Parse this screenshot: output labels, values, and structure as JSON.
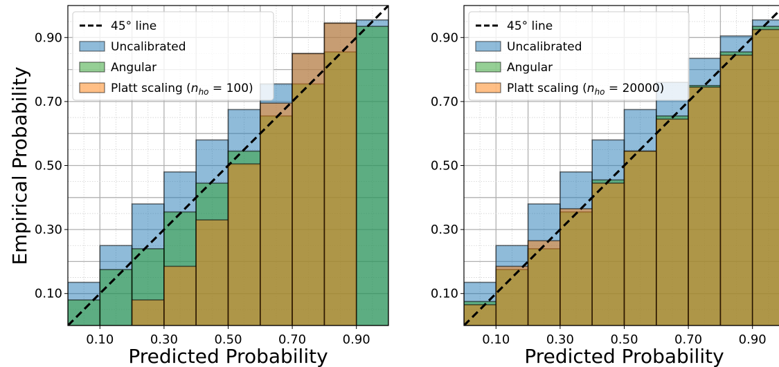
{
  "figure": {
    "ylabel": "Empirical Probability",
    "xlabel": "Predicted Probability"
  },
  "colors": {
    "uncalibrated": "#1f77b4",
    "angular": "#2ca02c",
    "platt": "#ff7f0e",
    "diagonal": "#000000"
  },
  "chart_data": [
    {
      "type": "bar",
      "xlabel": "Predicted Probability",
      "ylabel": "Empirical Probability",
      "xlim": [
        0,
        1
      ],
      "ylim": [
        0,
        1
      ],
      "grid": true,
      "legend_position": "top-left",
      "xticks": [
        "0.10",
        "0.30",
        "0.50",
        "0.70",
        "0.90"
      ],
      "yticks": [
        "0.10",
        "0.30",
        "0.50",
        "0.70",
        "0.90"
      ],
      "bin_edges": [
        0,
        0.1,
        0.2,
        0.3,
        0.4,
        0.5,
        0.6,
        0.7,
        0.8,
        0.9,
        1.0
      ],
      "legend": {
        "line": "45° line",
        "uncalibrated": "Uncalibrated",
        "angular": "Angular",
        "platt_prefix": "Platt scaling (",
        "platt_n": "n",
        "platt_sub": "ho",
        "platt_eq": " = 100)"
      },
      "series": [
        {
          "name": "Uncalibrated",
          "key": "uncalibrated",
          "values": [
            0.135,
            0.25,
            0.38,
            0.48,
            0.58,
            0.675,
            0.755,
            0.85,
            0.945,
            0.955
          ]
        },
        {
          "name": "Angular",
          "key": "angular",
          "values": [
            0.08,
            0.175,
            0.24,
            0.355,
            0.445,
            0.545,
            0.655,
            0.755,
            0.855,
            0.935
          ]
        },
        {
          "name": "Platt scaling",
          "key": "platt",
          "values": [
            0.0,
            0.0,
            0.08,
            0.185,
            0.33,
            0.505,
            0.695,
            0.85,
            0.945,
            0.0
          ]
        }
      ]
    },
    {
      "type": "bar",
      "xlabel": "Predicted Probability",
      "ylabel": "",
      "xlim": [
        0,
        1
      ],
      "ylim": [
        0,
        1
      ],
      "grid": true,
      "legend_position": "top-left",
      "xticks": [
        "0.10",
        "0.30",
        "0.50",
        "0.70",
        "0.90"
      ],
      "yticks": [
        "0.10",
        "0.30",
        "0.50",
        "0.70",
        "0.90"
      ],
      "bin_edges": [
        0,
        0.1,
        0.2,
        0.3,
        0.4,
        0.5,
        0.6,
        0.7,
        0.8,
        0.9,
        1.0
      ],
      "legend": {
        "line": "45° line",
        "uncalibrated": "Uncalibrated",
        "angular": "Angular",
        "platt_prefix": "Platt scaling (",
        "platt_n": "n",
        "platt_sub": "ho",
        "platt_eq": " = 20000)"
      },
      "series": [
        {
          "name": "Uncalibrated",
          "key": "uncalibrated",
          "values": [
            0.135,
            0.25,
            0.38,
            0.48,
            0.58,
            0.675,
            0.76,
            0.835,
            0.905,
            0.955
          ]
        },
        {
          "name": "Angular",
          "key": "angular",
          "values": [
            0.075,
            0.175,
            0.24,
            0.355,
            0.455,
            0.545,
            0.655,
            0.75,
            0.855,
            0.935
          ]
        },
        {
          "name": "Platt scaling",
          "key": "platt",
          "values": [
            0.065,
            0.185,
            0.265,
            0.365,
            0.445,
            0.545,
            0.645,
            0.745,
            0.845,
            0.925
          ]
        }
      ]
    }
  ]
}
